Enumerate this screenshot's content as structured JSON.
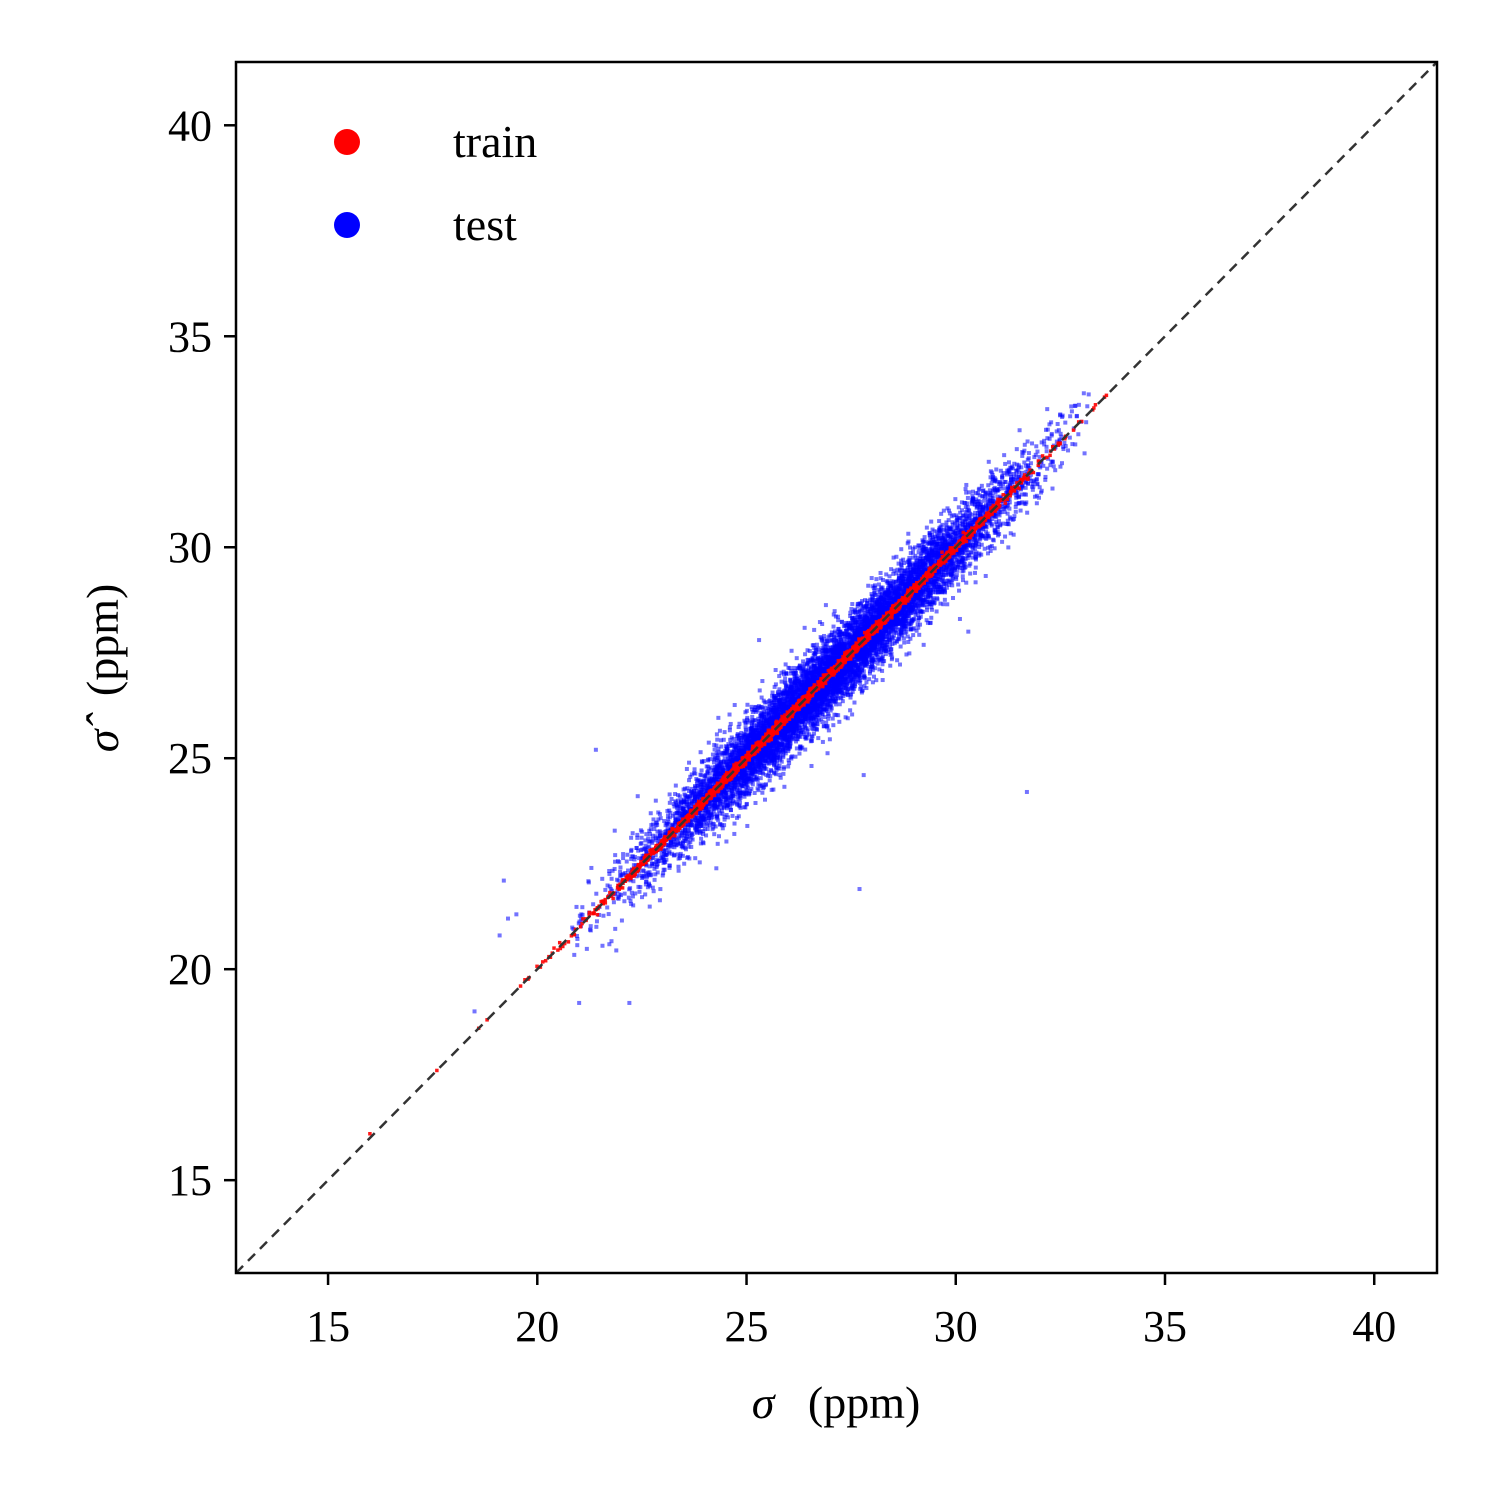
{
  "chart_data": {
    "type": "scatter",
    "title": "",
    "xlabel_symbol": "σ",
    "xlabel_unit": "(ppm)",
    "ylabel_symbol": "σ̂",
    "ylabel_unit": "(ppm)",
    "xlim": [
      12.8,
      41.5
    ],
    "ylim": [
      12.8,
      41.5
    ],
    "xticks": [
      15,
      20,
      25,
      30,
      35,
      40
    ],
    "yticks": [
      15,
      20,
      25,
      30,
      35,
      40
    ],
    "xtick_labels": [
      "15",
      "20",
      "25",
      "30",
      "35",
      "40"
    ],
    "ytick_labels": [
      "15",
      "20",
      "25",
      "30",
      "35",
      "40"
    ],
    "grid": false,
    "legend_position": "top-left",
    "reference_line": {
      "style": "dashed",
      "color": "#333333",
      "from": [
        12.8,
        12.8
      ],
      "to": [
        41.5,
        41.5
      ]
    },
    "series": [
      {
        "name": "train",
        "color": "#ff0000",
        "marker": "square",
        "distribution": {
          "x_min": 19.6,
          "x_max": 33.6,
          "spread_sd": 0.05
        },
        "points": [
          [
            16.0,
            16.1
          ],
          [
            17.6,
            17.6
          ],
          [
            18.6,
            18.6
          ],
          [
            18.8,
            18.8
          ],
          [
            19.6,
            19.6
          ],
          [
            19.8,
            19.8
          ],
          [
            20.2,
            20.2
          ],
          [
            20.4,
            20.5
          ],
          [
            33.3,
            33.3
          ],
          [
            33.6,
            33.6
          ]
        ]
      },
      {
        "name": "test",
        "color": "#0000ff",
        "marker": "square",
        "distribution": {
          "x_min": 20.8,
          "x_max": 33.2,
          "spread_sd": 0.45
        },
        "points": [
          [
            19.2,
            22.1
          ],
          [
            19.3,
            21.2
          ],
          [
            19.5,
            21.3
          ],
          [
            19.1,
            20.8
          ],
          [
            18.5,
            19.0
          ],
          [
            21.0,
            19.2
          ],
          [
            22.2,
            19.2
          ],
          [
            21.4,
            25.2
          ],
          [
            27.8,
            24.6
          ],
          [
            31.7,
            24.2
          ],
          [
            27.7,
            21.9
          ],
          [
            30.3,
            28.0
          ],
          [
            30.1,
            28.3
          ],
          [
            25.3,
            27.8
          ],
          [
            26.4,
            25.5
          ],
          [
            22.4,
            24.1
          ]
        ]
      }
    ]
  }
}
